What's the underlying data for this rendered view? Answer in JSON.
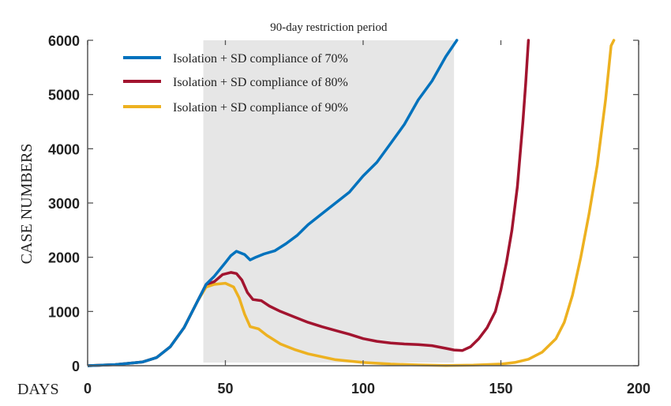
{
  "chart_data": {
    "type": "line",
    "title": "90-day restriction period",
    "xlabel": "DAYS",
    "ylabel": "CASE NUMBERS",
    "xlim": [
      0,
      200
    ],
    "ylim": [
      0,
      6000
    ],
    "xticks": [
      0,
      50,
      100,
      150,
      200
    ],
    "yticks": [
      0,
      1000,
      2000,
      3000,
      4000,
      5000,
      6000
    ],
    "grid": false,
    "legend_position": "top-left",
    "shaded_region": {
      "label": "90-day restriction period",
      "x_start": 42,
      "x_end": 133,
      "color": "#e6e6e6"
    },
    "series": [
      {
        "name": "Isolation + SD compliance of 70%",
        "color": "#0072bd",
        "points": [
          [
            0,
            0
          ],
          [
            10,
            20
          ],
          [
            20,
            70
          ],
          [
            25,
            150
          ],
          [
            30,
            350
          ],
          [
            35,
            700
          ],
          [
            40,
            1200
          ],
          [
            43,
            1500
          ],
          [
            46,
            1650
          ],
          [
            50,
            1900
          ],
          [
            52,
            2030
          ],
          [
            54,
            2110
          ],
          [
            57,
            2050
          ],
          [
            59,
            1950
          ],
          [
            61,
            2000
          ],
          [
            64,
            2060
          ],
          [
            68,
            2120
          ],
          [
            72,
            2250
          ],
          [
            76,
            2400
          ],
          [
            80,
            2600
          ],
          [
            85,
            2800
          ],
          [
            90,
            3000
          ],
          [
            95,
            3200
          ],
          [
            100,
            3500
          ],
          [
            105,
            3750
          ],
          [
            110,
            4100
          ],
          [
            115,
            4450
          ],
          [
            120,
            4900
          ],
          [
            125,
            5250
          ],
          [
            130,
            5700
          ],
          [
            134,
            6000
          ]
        ]
      },
      {
        "name": "Isolation + SD compliance of 80%",
        "color": "#a2142f",
        "points": [
          [
            0,
            0
          ],
          [
            10,
            20
          ],
          [
            20,
            70
          ],
          [
            25,
            150
          ],
          [
            30,
            350
          ],
          [
            35,
            700
          ],
          [
            40,
            1200
          ],
          [
            43,
            1500
          ],
          [
            46,
            1550
          ],
          [
            49,
            1680
          ],
          [
            52,
            1720
          ],
          [
            54,
            1700
          ],
          [
            56,
            1580
          ],
          [
            58,
            1350
          ],
          [
            60,
            1220
          ],
          [
            63,
            1200
          ],
          [
            66,
            1100
          ],
          [
            70,
            1000
          ],
          [
            75,
            900
          ],
          [
            80,
            800
          ],
          [
            85,
            720
          ],
          [
            90,
            650
          ],
          [
            95,
            580
          ],
          [
            100,
            500
          ],
          [
            105,
            450
          ],
          [
            110,
            420
          ],
          [
            115,
            400
          ],
          [
            120,
            390
          ],
          [
            125,
            370
          ],
          [
            130,
            320
          ],
          [
            133,
            290
          ],
          [
            136,
            280
          ],
          [
            139,
            350
          ],
          [
            142,
            500
          ],
          [
            145,
            700
          ],
          [
            148,
            1000
          ],
          [
            150,
            1400
          ],
          [
            152,
            1900
          ],
          [
            154,
            2500
          ],
          [
            156,
            3300
          ],
          [
            158,
            4500
          ],
          [
            159,
            5200
          ],
          [
            160,
            6000
          ]
        ]
      },
      {
        "name": "Isolation + SD compliance of 90%",
        "color": "#edb120",
        "points": [
          [
            0,
            0
          ],
          [
            10,
            20
          ],
          [
            20,
            70
          ],
          [
            25,
            150
          ],
          [
            30,
            350
          ],
          [
            35,
            700
          ],
          [
            40,
            1200
          ],
          [
            43,
            1450
          ],
          [
            46,
            1500
          ],
          [
            50,
            1520
          ],
          [
            53,
            1450
          ],
          [
            55,
            1250
          ],
          [
            57,
            950
          ],
          [
            59,
            720
          ],
          [
            62,
            680
          ],
          [
            65,
            560
          ],
          [
            70,
            400
          ],
          [
            75,
            300
          ],
          [
            80,
            220
          ],
          [
            90,
            110
          ],
          [
            100,
            60
          ],
          [
            110,
            30
          ],
          [
            120,
            15
          ],
          [
            130,
            5
          ],
          [
            140,
            10
          ],
          [
            150,
            30
          ],
          [
            155,
            60
          ],
          [
            160,
            120
          ],
          [
            165,
            250
          ],
          [
            170,
            500
          ],
          [
            173,
            800
          ],
          [
            176,
            1300
          ],
          [
            179,
            2000
          ],
          [
            182,
            2800
          ],
          [
            185,
            3700
          ],
          [
            188,
            4900
          ],
          [
            190,
            5900
          ],
          [
            191,
            6000
          ]
        ]
      }
    ]
  }
}
